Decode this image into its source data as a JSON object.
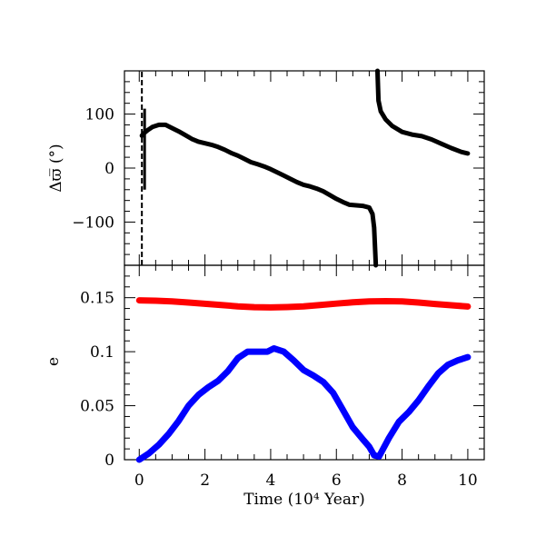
{
  "chart_data": [
    {
      "type": "line",
      "ylabel": "Δϖ̅  (°)",
      "xlim": [
        -0.45,
        10.5
      ],
      "ylim": [
        -180,
        180
      ],
      "yticks": [
        -100,
        0,
        100
      ],
      "ytick_labels": [
        "−100",
        "0",
        "100"
      ],
      "grid": false,
      "series": [
        {
          "color": "#000000",
          "segments": [
            {
              "x": [
                0.08,
                0.15,
                0.25,
                0.4,
                0.6,
                0.8,
                1.0,
                1.2,
                1.4,
                1.6,
                1.8,
                2.0,
                2.2,
                2.4,
                2.6,
                2.8,
                3.0,
                3.2,
                3.4,
                3.6,
                3.8,
                4.0,
                4.2,
                4.4,
                4.6,
                4.8,
                5.0,
                5.2,
                5.4,
                5.6,
                5.8,
                6.0,
                6.2,
                6.4,
                6.6,
                6.8,
                7.0,
                7.1,
                7.15,
                7.2
              ],
              "y": [
                60,
                65,
                70,
                76,
                80,
                80,
                74,
                68,
                61,
                54,
                49,
                46,
                43,
                39,
                34,
                28,
                23,
                17,
                11,
                7,
                3,
                -2,
                -8,
                -14,
                -20,
                -26,
                -31,
                -34,
                -38,
                -43,
                -50,
                -57,
                -63,
                -68,
                -69,
                -70,
                -73,
                -85,
                -110,
                -180
              ]
            },
            {
              "x": [
                7.25,
                7.28,
                7.35,
                7.5,
                7.7,
                8.0,
                8.3,
                8.6,
                8.9,
                9.2,
                9.5,
                9.8,
                10.0
              ],
              "y": [
                180,
                125,
                105,
                90,
                78,
                67,
                62,
                59,
                53,
                45,
                37,
                30,
                27
              ]
            }
          ]
        }
      ]
    },
    {
      "type": "line",
      "xlabel": "Time (10⁴ Year)",
      "ylabel": "e",
      "xlim": [
        -0.45,
        10.5
      ],
      "ylim": [
        0,
        0.18
      ],
      "xticks": [
        0,
        2,
        4,
        6,
        8,
        10
      ],
      "xtick_labels": [
        "0",
        "2",
        "4",
        "6",
        "8",
        "10"
      ],
      "yticks": [
        0,
        0.05,
        0.1,
        0.15
      ],
      "ytick_labels": [
        "0",
        "0.05",
        "0.1",
        "0.15"
      ],
      "grid": false,
      "series": [
        {
          "color": "#ff0000",
          "x": [
            0,
            0.5,
            1,
            1.5,
            2,
            2.5,
            3,
            3.5,
            4,
            4.5,
            5,
            5.5,
            6,
            6.5,
            7,
            7.5,
            8,
            8.5,
            9,
            9.5,
            10
          ],
          "y": [
            0.1475,
            0.1472,
            0.1465,
            0.1455,
            0.1443,
            0.1432,
            0.142,
            0.1412,
            0.141,
            0.1413,
            0.142,
            0.1432,
            0.1445,
            0.1457,
            0.1465,
            0.1468,
            0.1465,
            0.1455,
            0.1442,
            0.143,
            0.1418
          ]
        },
        {
          "color": "#0000ff",
          "x": [
            0,
            0.3,
            0.6,
            0.9,
            1.2,
            1.5,
            1.8,
            2.1,
            2.4,
            2.7,
            3.0,
            3.3,
            3.6,
            3.9,
            4.1,
            4.4,
            4.7,
            5.0,
            5.3,
            5.6,
            5.9,
            6.2,
            6.5,
            6.8,
            7.0,
            7.15,
            7.3,
            7.6,
            7.9,
            8.2,
            8.5,
            8.8,
            9.1,
            9.4,
            9.7,
            10.0
          ],
          "y": [
            0.0,
            0.006,
            0.014,
            0.024,
            0.036,
            0.05,
            0.06,
            0.067,
            0.073,
            0.082,
            0.094,
            0.1,
            0.1,
            0.1,
            0.103,
            0.1,
            0.092,
            0.083,
            0.078,
            0.072,
            0.062,
            0.046,
            0.03,
            0.019,
            0.012,
            0.004,
            0.003,
            0.02,
            0.035,
            0.044,
            0.055,
            0.068,
            0.08,
            0.088,
            0.092,
            0.095
          ]
        }
      ]
    }
  ]
}
